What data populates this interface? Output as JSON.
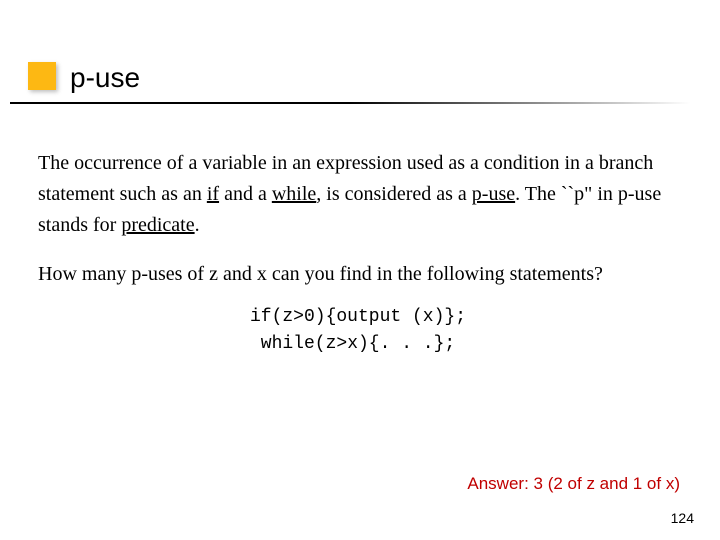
{
  "meta": {
    "page_number": "124"
  },
  "title": {
    "text": "p-use",
    "box_color": "#fdb813"
  },
  "body": {
    "p1_a": "The occurrence of a  variable  in an expression  used as a condition in a branch statement such as an ",
    "p1_if": "if",
    "p1_b": " and a ",
    "p1_while": "while",
    "p1_c": ", is considered as a ",
    "p1_puse": "p-use",
    "p1_d": ". The ``p\" in p-use stands for ",
    "p1_predicate": "predicate",
    "p1_e": ".",
    "p2": "How many p-uses of z and x can you find in the following statements?",
    "code_line1": "if(z>0){output (x)};",
    "code_line2": "while(z>x){. . .};"
  },
  "answer": {
    "text": "Answer: 3 (2 of z and 1 of x)",
    "color": "#c00000"
  }
}
